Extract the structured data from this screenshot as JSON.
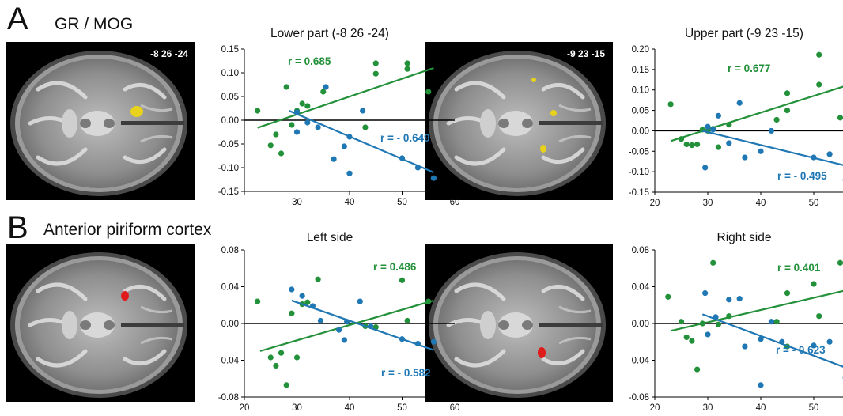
{
  "sections": [
    {
      "letter": "A",
      "title": "GR / MOG"
    },
    {
      "letter": "B",
      "title": "Anterior piriform cortex"
    }
  ],
  "colors": {
    "green": "#23913a",
    "blue": "#1f77b4",
    "axis": "#000000",
    "activation_yellow": "#e8d21c",
    "activation_red": "#e01b1b"
  },
  "brains": [
    {
      "coord": "-8 26 -24",
      "activation": "yellow"
    },
    {
      "coord": "-9 23 -15",
      "activation": "yellow"
    },
    {
      "coord": "",
      "activation": "red"
    },
    {
      "coord": "",
      "activation": "red"
    }
  ],
  "chart_data": [
    {
      "type": "scatter",
      "title": "Lower part (-8 26 -24)",
      "xlim": [
        20,
        60
      ],
      "ylim": [
        -0.15,
        0.15
      ],
      "xticks": [
        20,
        30,
        40,
        50,
        60
      ],
      "xtick_labels": [
        "",
        "30",
        "40",
        "50",
        "60"
      ],
      "yticks": [
        -0.15,
        -0.1,
        -0.05,
        0,
        0.05,
        0.1,
        0.15
      ],
      "ytick_labels": [
        "-0.15",
        "-0.10",
        "-0.05",
        "0.00",
        "0.05",
        "0.10",
        "0.15"
      ],
      "series": [
        {
          "color": "green",
          "annotation": "r = 0.685",
          "points": [
            [
              22.5,
              0.02
            ],
            [
              25,
              -0.053
            ],
            [
              26,
              -0.03
            ],
            [
              27,
              -0.07
            ],
            [
              28,
              0.07
            ],
            [
              29,
              -0.01
            ],
            [
              30,
              0.02
            ],
            [
              31,
              0.035
            ],
            [
              32,
              0.03
            ],
            [
              35,
              0.06
            ],
            [
              43,
              -0.015
            ],
            [
              45,
              0.12
            ],
            [
              45,
              0.098
            ],
            [
              51,
              0.108
            ],
            [
              51,
              0.12
            ],
            [
              55,
              0.06
            ]
          ],
          "fit": [
            [
              22.5,
              -0.016
            ],
            [
              56,
              0.11
            ]
          ]
        },
        {
          "color": "blue",
          "annotation": "r = - 0.649",
          "points": [
            [
              30,
              0.017
            ],
            [
              30,
              -0.025
            ],
            [
              32,
              -0.005
            ],
            [
              34,
              -0.015
            ],
            [
              35.5,
              0.07
            ],
            [
              37,
              -0.082
            ],
            [
              39,
              -0.055
            ],
            [
              40,
              -0.035
            ],
            [
              40,
              -0.112
            ],
            [
              42.5,
              0.02
            ],
            [
              50,
              -0.08
            ],
            [
              53,
              -0.1
            ],
            [
              56,
              -0.122
            ]
          ],
          "fit": [
            [
              28.5,
              0.02
            ],
            [
              56,
              -0.11
            ]
          ]
        }
      ]
    },
    {
      "type": "scatter",
      "title": "Upper part (-9 23 -15)",
      "xlim": [
        20,
        60
      ],
      "ylim": [
        -0.15,
        0.2
      ],
      "xticks": [
        20,
        30,
        40,
        50,
        60
      ],
      "xtick_labels": [
        "20",
        "30",
        "40",
        "50",
        "60"
      ],
      "yticks": [
        -0.15,
        -0.1,
        -0.05,
        0,
        0.05,
        0.1,
        0.15,
        0.2
      ],
      "ytick_labels": [
        "-0.15",
        "-0.10",
        "-0.05",
        "0.00",
        "0.05",
        "0.10",
        "0.15",
        "0.20"
      ],
      "series": [
        {
          "color": "green",
          "annotation": "r = 0.677",
          "points": [
            [
              23,
              0.065
            ],
            [
              25,
              -0.02
            ],
            [
              26,
              -0.033
            ],
            [
              27,
              -0.035
            ],
            [
              28,
              -0.033
            ],
            [
              29,
              0.003
            ],
            [
              30,
              0.0
            ],
            [
              31,
              0.005
            ],
            [
              32,
              -0.04
            ],
            [
              34,
              0.015
            ],
            [
              43,
              0.027
            ],
            [
              45,
              0.05
            ],
            [
              45,
              0.092
            ],
            [
              51,
              0.113
            ],
            [
              51,
              0.186
            ],
            [
              55,
              0.032
            ]
          ],
          "fit": [
            [
              23,
              -0.025
            ],
            [
              56,
              0.11
            ]
          ]
        },
        {
          "color": "blue",
          "annotation": "r = - 0.495",
          "points": [
            [
              29.5,
              -0.09
            ],
            [
              30,
              0.01
            ],
            [
              31,
              0.003
            ],
            [
              32,
              0.037
            ],
            [
              34,
              -0.03
            ],
            [
              36,
              0.068
            ],
            [
              37,
              -0.065
            ],
            [
              40,
              -0.05
            ],
            [
              42,
              0.0
            ],
            [
              50,
              -0.065
            ],
            [
              53,
              -0.057
            ],
            [
              56,
              -0.12
            ]
          ],
          "fit": [
            [
              29,
              0.0
            ],
            [
              56,
              -0.085
            ]
          ]
        }
      ]
    },
    {
      "type": "scatter",
      "title": "Left side",
      "xlim": [
        20,
        60
      ],
      "ylim": [
        -0.08,
        0.08
      ],
      "xticks": [
        20,
        30,
        40,
        50,
        60
      ],
      "xtick_labels": [
        "20",
        "30",
        "40",
        "50",
        "60"
      ],
      "yticks": [
        -0.08,
        -0.04,
        0,
        0.04,
        0.08
      ],
      "ytick_labels": [
        "-0.08",
        "-0.04",
        "0.00",
        "0.04",
        "0.08"
      ],
      "series": [
        {
          "color": "green",
          "annotation": "r = 0.486",
          "points": [
            [
              22.5,
              0.024
            ],
            [
              25,
              -0.037
            ],
            [
              26,
              -0.046
            ],
            [
              27,
              -0.032
            ],
            [
              28,
              -0.067
            ],
            [
              29,
              0.011
            ],
            [
              30,
              -0.037
            ],
            [
              31,
              0.021
            ],
            [
              32,
              0.023
            ],
            [
              34,
              0.048
            ],
            [
              43,
              -0.003
            ],
            [
              45,
              -0.004
            ],
            [
              50,
              0.047
            ],
            [
              51,
              0.003
            ],
            [
              55,
              0.024
            ]
          ],
          "fit": [
            [
              23,
              -0.03
            ],
            [
              56,
              0.025
            ]
          ]
        },
        {
          "color": "blue",
          "annotation": "r = - 0.582",
          "points": [
            [
              29,
              0.037
            ],
            [
              31,
              0.03
            ],
            [
              33,
              0.019
            ],
            [
              34.5,
              0.003
            ],
            [
              38,
              -0.007
            ],
            [
              39,
              -0.018
            ],
            [
              39.5,
              0.002
            ],
            [
              42,
              0.024
            ],
            [
              44,
              -0.003
            ],
            [
              50,
              -0.017
            ],
            [
              53,
              -0.022
            ],
            [
              56,
              -0.02
            ]
          ],
          "fit": [
            [
              29,
              0.025
            ],
            [
              56,
              -0.029
            ]
          ]
        }
      ]
    },
    {
      "type": "scatter",
      "title": "Right side",
      "xlim": [
        20,
        60
      ],
      "ylim": [
        -0.08,
        0.08
      ],
      "xticks": [
        20,
        30,
        40,
        50,
        60
      ],
      "xtick_labels": [
        "20",
        "30",
        "40",
        "50",
        "60"
      ],
      "yticks": [
        -0.08,
        -0.04,
        0,
        0.04,
        0.08
      ],
      "ytick_labels": [
        "-0.08",
        "-0.04",
        "0.00",
        "0.04",
        "0.08"
      ],
      "series": [
        {
          "color": "green",
          "annotation": "r = 0.401",
          "points": [
            [
              22.5,
              0.029
            ],
            [
              25,
              0.002
            ],
            [
              26,
              -0.015
            ],
            [
              27,
              -0.019
            ],
            [
              28,
              -0.05
            ],
            [
              29,
              0.0
            ],
            [
              31,
              0.066
            ],
            [
              32,
              -0.001
            ],
            [
              34,
              0.008
            ],
            [
              43,
              0.002
            ],
            [
              45,
              -0.025
            ],
            [
              45,
              0.033
            ],
            [
              50,
              0.043
            ],
            [
              51,
              0.008
            ],
            [
              55,
              0.066
            ]
          ],
          "fit": [
            [
              23,
              -0.008
            ],
            [
              56,
              0.036
            ]
          ]
        },
        {
          "color": "blue",
          "annotation": "r = - 0.623",
          "points": [
            [
              29.5,
              0.033
            ],
            [
              30,
              -0.012
            ],
            [
              31.5,
              0.007
            ],
            [
              34,
              0.026
            ],
            [
              36,
              0.027
            ],
            [
              37,
              -0.025
            ],
            [
              40,
              -0.017
            ],
            [
              40,
              -0.067
            ],
            [
              42,
              0.002
            ],
            [
              44,
              -0.02
            ],
            [
              50,
              -0.024
            ],
            [
              53,
              -0.02
            ],
            [
              56,
              -0.059
            ]
          ],
          "fit": [
            [
              29,
              0.01
            ],
            [
              56,
              -0.048
            ]
          ]
        }
      ]
    }
  ]
}
